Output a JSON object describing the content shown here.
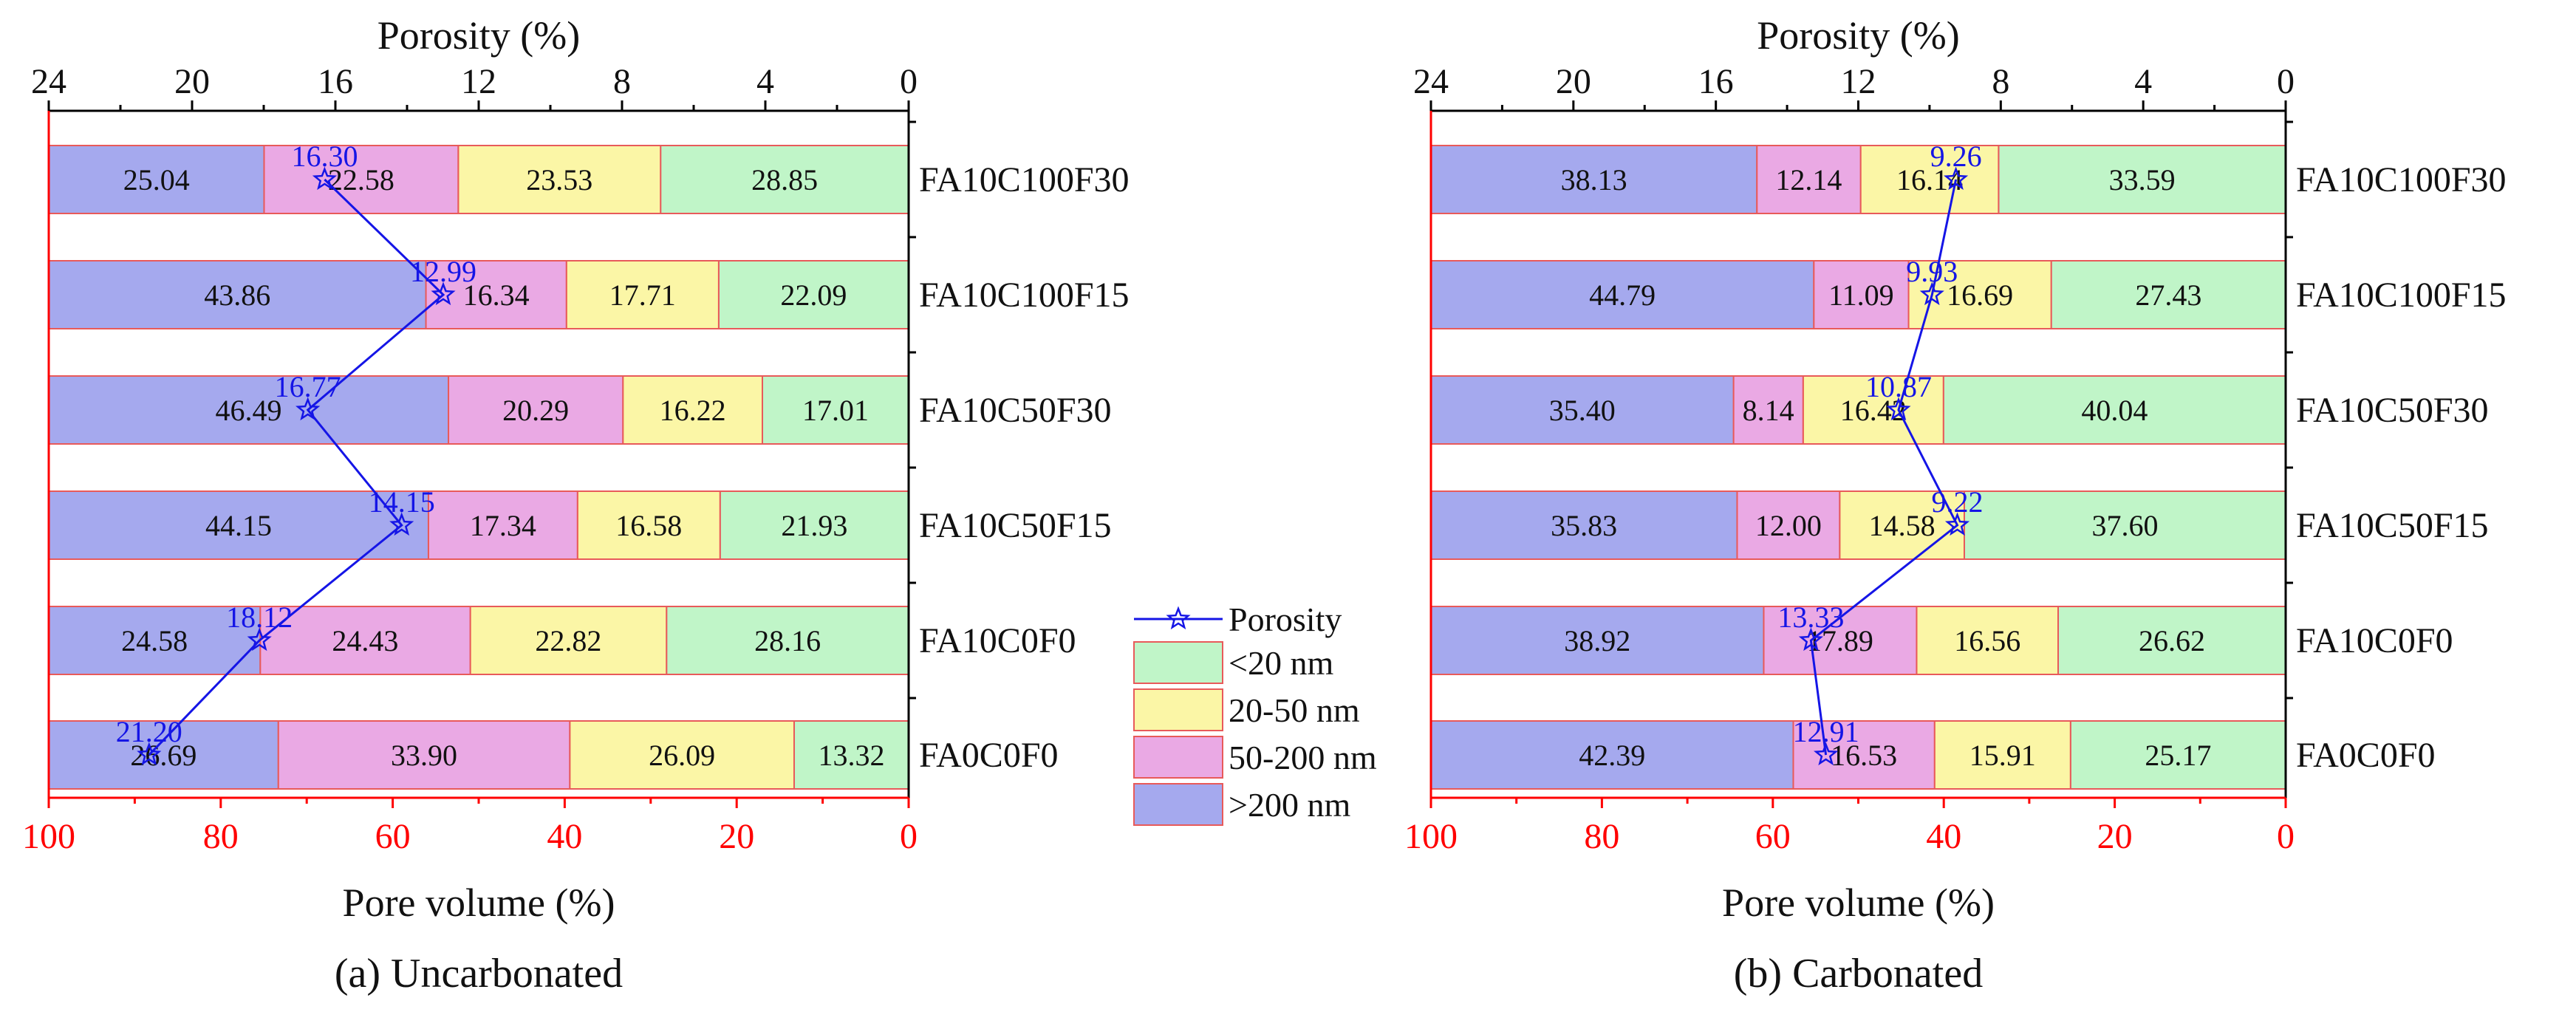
{
  "figure": {
    "legend": {
      "porosity_label": "Porosity",
      "entries": [
        "<20 nm",
        "20-50 nm",
        "50-200 nm",
        ">200 nm"
      ]
    },
    "colors": {
      "lt20": "#C0F5C8",
      "r20_50": "#FBF6A6",
      "r50_200": "#EAA9E4",
      "gt200": "#A5A9EE",
      "bar_edge": "#E85A5A",
      "porosity": "#1515E6",
      "bottom_axis": "#FF0000",
      "text": "#111111"
    }
  },
  "chart_data": [
    {
      "type": "bar",
      "orientation": "horizontal-stacked-reversed",
      "caption": "(a) Uncarbonated",
      "xlabel": "Pore volume (%)",
      "x2label": "Porosity (%)",
      "xlim": [
        100,
        0
      ],
      "x2lim": [
        24,
        0
      ],
      "xticks": [
        "100",
        "80",
        "60",
        "40",
        "20",
        "0"
      ],
      "x2ticks": [
        "24",
        "20",
        "16",
        "12",
        "8",
        "4",
        "0"
      ],
      "categories": [
        "FA10C100F30",
        "FA10C100F15",
        "FA10C50F30",
        "FA10C50F15",
        "FA10C0F0",
        "FA0C0F0"
      ],
      "series": [
        {
          "name": "<20 nm",
          "values": [
            "28.85",
            "22.09",
            "17.01",
            "21.93",
            "28.16",
            "13.32"
          ]
        },
        {
          "name": "20-50 nm",
          "values": [
            "23.53",
            "17.71",
            "16.22",
            "16.58",
            "22.82",
            "26.09"
          ]
        },
        {
          "name": "50-200 nm",
          "values": [
            "22.58",
            "16.34",
            "20.29",
            "17.34",
            "24.43",
            "33.90"
          ]
        },
        {
          "name": ">200 nm",
          "values": [
            "25.04",
            "43.86",
            "46.49",
            "44.15",
            "24.58",
            "26.69"
          ]
        }
      ],
      "porosity": [
        "16.30",
        "12.99",
        "16.77",
        "14.15",
        "18.12",
        "21.20"
      ]
    },
    {
      "type": "bar",
      "orientation": "horizontal-stacked-reversed",
      "caption": "(b) Carbonated",
      "xlabel": "Pore volume (%)",
      "x2label": "Porosity (%)",
      "xlim": [
        100,
        0
      ],
      "x2lim": [
        24,
        0
      ],
      "xticks": [
        "100",
        "80",
        "60",
        "40",
        "20",
        "0"
      ],
      "x2ticks": [
        "24",
        "20",
        "16",
        "12",
        "8",
        "4",
        "0"
      ],
      "categories": [
        "FA10C100F30",
        "FA10C100F15",
        "FA10C50F30",
        "FA10C50F15",
        "FA10C0F0",
        "FA0C0F0"
      ],
      "series": [
        {
          "name": "<20 nm",
          "values": [
            "33.59",
            "27.43",
            "40.04",
            "37.60",
            "26.62",
            "25.17"
          ]
        },
        {
          "name": "20-50 nm",
          "values": [
            "16.14",
            "16.69",
            "16.42",
            "14.58",
            "16.56",
            "15.91"
          ]
        },
        {
          "name": "50-200 nm",
          "values": [
            "12.14",
            "11.09",
            "8.14",
            "12.00",
            "17.89",
            "16.53"
          ]
        },
        {
          "name": ">200 nm",
          "values": [
            "38.13",
            "44.79",
            "35.40",
            "35.83",
            "38.92",
            "42.39"
          ]
        }
      ],
      "porosity": [
        "9.26",
        "9.93",
        "10.87",
        "9.22",
        "13.33",
        "12.91"
      ]
    }
  ]
}
